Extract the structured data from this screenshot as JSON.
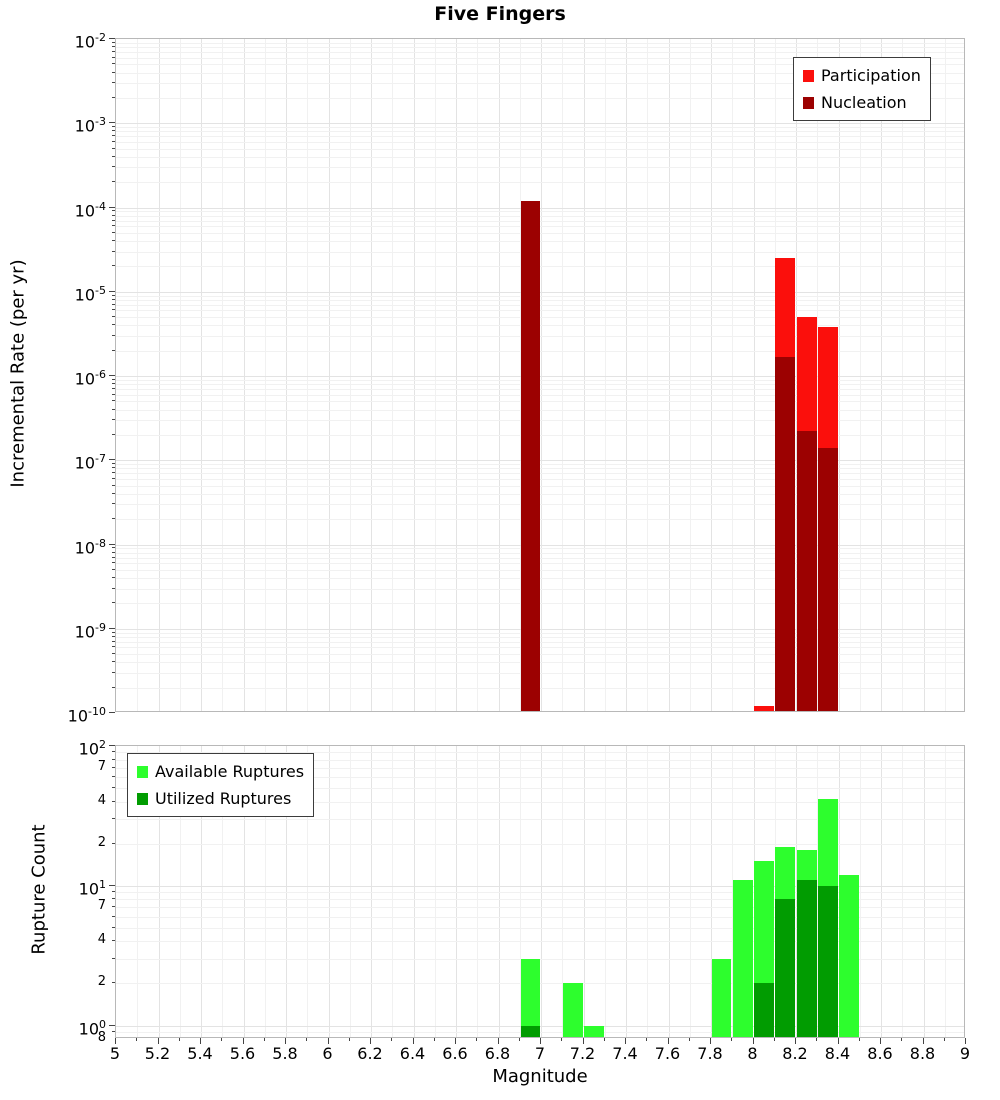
{
  "title": "Five Fingers",
  "axes": {
    "xlabel": "Magnitude",
    "top_ylabel": "Incremental Rate (per yr)",
    "bottom_ylabel": "Rupture Count",
    "x_range": [
      5,
      9
    ],
    "x_tick_labels": [
      "5",
      "5.2",
      "5.4",
      "5.6",
      "5.8",
      "6",
      "6.2",
      "6.4",
      "6.6",
      "6.8",
      "7",
      "7.2",
      "7.4",
      "7.6",
      "7.8",
      "8",
      "8.2",
      "8.4",
      "8.6",
      "8.8",
      "9"
    ],
    "top_y_exponents": [
      -2,
      -3,
      -4,
      -5,
      -6,
      -7,
      -8,
      -9,
      -10
    ],
    "bottom_y_exponents": [
      2,
      1,
      0
    ],
    "bottom_y_minor_labels": [
      {
        "value": 70,
        "text": "7"
      },
      {
        "value": 40,
        "text": "4"
      },
      {
        "value": 20,
        "text": "2"
      },
      {
        "value": 7,
        "text": "7"
      },
      {
        "value": 4,
        "text": "4"
      },
      {
        "value": 2,
        "text": "2"
      },
      {
        "value": 0.8,
        "text": "8"
      }
    ]
  },
  "colors": {
    "participation": "#fb0f0c",
    "nucleation": "#9c0101",
    "available": "#2dfe2d",
    "utilized": "#019c01",
    "grid_minor": "#f1f1f1",
    "grid_major": "#e3e3e3",
    "plot_border": "#b8b8b8",
    "tick": "#444444"
  },
  "legends": {
    "top": [
      {
        "label": "Participation",
        "color_key": "participation"
      },
      {
        "label": "Nucleation",
        "color_key": "nucleation"
      }
    ],
    "bottom": [
      {
        "label": "Available Ruptures",
        "color_key": "available"
      },
      {
        "label": "Utilized Ruptures",
        "color_key": "utilized"
      }
    ]
  },
  "chart_data": [
    {
      "type": "bar",
      "panel": "incremental-rate",
      "title": "Five Fingers",
      "xlabel": "Magnitude",
      "ylabel": "Incremental Rate (per yr)",
      "yscale": "log",
      "ylim": [
        1e-10,
        0.01
      ],
      "xlim": [
        5,
        9
      ],
      "bin_width": 0.1,
      "grid": true,
      "legend_position": "top-right",
      "series": [
        {
          "name": "Participation",
          "key": "participation",
          "color_key": "participation",
          "data": [
            [
              6.95,
              0.00012
            ],
            [
              8.05,
              1.2e-10
            ],
            [
              8.15,
              2.5e-05
            ],
            [
              8.25,
              5e-06
            ],
            [
              8.35,
              3.8e-06
            ]
          ]
        },
        {
          "name": "Nucleation",
          "key": "nucleation",
          "color_key": "nucleation",
          "data": [
            [
              6.95,
              0.00012
            ],
            [
              8.15,
              1.7e-06
            ],
            [
              8.25,
              2.2e-07
            ],
            [
              8.35,
              1.4e-07
            ]
          ]
        }
      ]
    },
    {
      "type": "bar",
      "panel": "rupture-count",
      "xlabel": "Magnitude",
      "ylabel": "Rupture Count",
      "yscale": "log",
      "ylim": [
        0.8,
        100
      ],
      "xlim": [
        5,
        9
      ],
      "bin_width": 0.1,
      "grid": true,
      "legend_position": "top-left",
      "series": [
        {
          "name": "Available Ruptures",
          "key": "available",
          "color_key": "available",
          "data": [
            [
              6.95,
              3
            ],
            [
              7.15,
              2
            ],
            [
              7.25,
              1
            ],
            [
              7.85,
              3
            ],
            [
              7.95,
              11
            ],
            [
              8.05,
              15
            ],
            [
              8.15,
              19
            ],
            [
              8.25,
              18
            ],
            [
              8.35,
              42
            ],
            [
              8.45,
              12
            ]
          ]
        },
        {
          "name": "Utilized Ruptures",
          "key": "utilized",
          "color_key": "utilized",
          "data": [
            [
              6.95,
              1
            ],
            [
              8.05,
              2
            ],
            [
              8.15,
              8
            ],
            [
              8.25,
              11
            ],
            [
              8.35,
              10
            ]
          ]
        }
      ]
    }
  ]
}
